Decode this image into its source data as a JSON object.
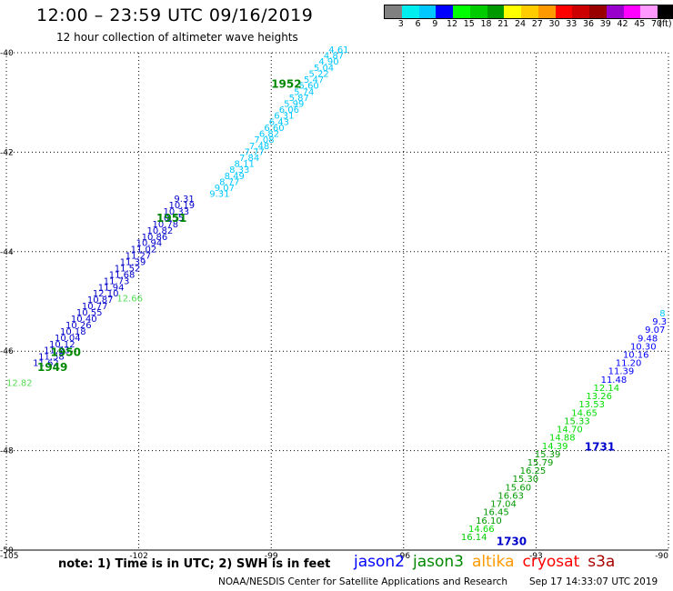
{
  "header": {
    "title": "12:00 – 23:59 UTC 09/16/2019",
    "subtitle": "12 hour collection of altimeter wave heights"
  },
  "colorbar": {
    "colors": [
      "#808080",
      "#00eeee",
      "#00c8ff",
      "#0000ff",
      "#00ff00",
      "#00cc00",
      "#009900",
      "#ffff00",
      "#ffcc00",
      "#ff9900",
      "#ff0000",
      "#cc0000",
      "#990000",
      "#9900cc",
      "#ff00ff",
      "#ff99ff",
      "#000000"
    ],
    "labels": [
      "3",
      "6",
      "9",
      "12",
      "15",
      "18",
      "21",
      "24",
      "27",
      "30",
      "33",
      "36",
      "39",
      "42",
      "45",
      "70",
      "(ft)"
    ]
  },
  "note": "note: 1) Time is in UTC; 2) SWH is in feet",
  "legend": [
    {
      "name": "jason2",
      "color": "#0000ff"
    },
    {
      "name": "jason3",
      "color": "#008800"
    },
    {
      "name": "altika",
      "color": "#ff9900"
    },
    {
      "name": "cryosat",
      "color": "#ff0000"
    },
    {
      "name": "s3a",
      "color": "#aa0000"
    }
  ],
  "footer": {
    "credit": "NOAA/NESDIS Center for Satellite Applications and Research",
    "timestamp": "Sep 17 14:33:07 UTC 2019"
  },
  "chart_data": {
    "type": "scatter",
    "xlim": [
      -105,
      -90
    ],
    "ylim": [
      -50,
      -40
    ],
    "x_ticks": [
      -105,
      -102,
      -99,
      -96,
      -93,
      -90
    ],
    "y_ticks": [
      -40,
      -42,
      -44,
      -46,
      -48,
      -50
    ],
    "grid": true,
    "left_track": {
      "cyan_labels": [
        "4.61",
        "4.87",
        "4.90",
        "5.04",
        "5.22",
        "5.47",
        "5.60",
        "5.74",
        "5.87",
        "5.99",
        "6.06",
        "6.31",
        "6.43",
        "6.60",
        "6.82",
        "7.08",
        "7.48",
        "7.77",
        "7.84",
        "8.11",
        "8.33",
        "8.49",
        "8.77",
        "9.07",
        "9.31"
      ],
      "blue_labels": [
        "9.31",
        "10.19",
        "10.33",
        "10.55",
        "10.78",
        "10.82",
        "10.86",
        "10.94",
        "11.02",
        "11.27",
        "11.39",
        "11.52",
        "11.68",
        "11.73",
        "11.94",
        "12.10",
        "10.87",
        "10.77",
        "10.55",
        "10.40",
        "10.26",
        "10.18",
        "10.04",
        "10.12",
        "11.23",
        "11.58",
        "11.62"
      ],
      "green_labels": [
        "12.66",
        "12.82"
      ],
      "time_labels": [
        {
          "text": "1952",
          "lon": -99.0,
          "lat": -40.7
        },
        {
          "text": "1951",
          "lon": -101.6,
          "lat": -43.4
        },
        {
          "text": "1950",
          "lon": -104.0,
          "lat": -46.1
        },
        {
          "text": "1949",
          "lon": -104.3,
          "lat": -46.4
        }
      ]
    },
    "right_track": {
      "labels": [
        {
          "text": "8",
          "color": "#00c8ff"
        },
        {
          "text": "9.3",
          "color": "#0000ff"
        },
        {
          "text": "9.07",
          "color": "#0000ff"
        },
        {
          "text": "9.48",
          "color": "#0000ff"
        },
        {
          "text": "10.30",
          "color": "#0000ff"
        },
        {
          "text": "10.16",
          "color": "#0000ff"
        },
        {
          "text": "11.20",
          "color": "#0000ff"
        },
        {
          "text": "11.39",
          "color": "#0000ff"
        },
        {
          "text": "11.48",
          "color": "#0000ff"
        },
        {
          "text": "12.14",
          "color": "#00dd00"
        },
        {
          "text": "13.26",
          "color": "#00dd00"
        },
        {
          "text": "13.53",
          "color": "#00dd00"
        },
        {
          "text": "14.65",
          "color": "#00dd00"
        },
        {
          "text": "15.33",
          "color": "#00cc00"
        },
        {
          "text": "14.70",
          "color": "#00dd00"
        },
        {
          "text": "14.88",
          "color": "#00dd00"
        },
        {
          "text": "14.39",
          "color": "#00dd00"
        },
        {
          "text": "15.39",
          "color": "#009900"
        },
        {
          "text": "15.79",
          "color": "#009900"
        },
        {
          "text": "16.25",
          "color": "#009900"
        },
        {
          "text": "15.30",
          "color": "#009900"
        },
        {
          "text": "15.60",
          "color": "#009900"
        },
        {
          "text": "16.63",
          "color": "#009900"
        },
        {
          "text": "17.04",
          "color": "#009900"
        },
        {
          "text": "16.45",
          "color": "#009900"
        },
        {
          "text": "16.10",
          "color": "#009900"
        },
        {
          "text": "14.66",
          "color": "#00dd00"
        },
        {
          "text": "16.14",
          "color": "#00cc00"
        }
      ],
      "time_labels": [
        {
          "text": "1731",
          "lon": -91.9,
          "lat": -48.0
        },
        {
          "text": "1730",
          "lon": -93.9,
          "lat": -49.9
        }
      ]
    }
  }
}
